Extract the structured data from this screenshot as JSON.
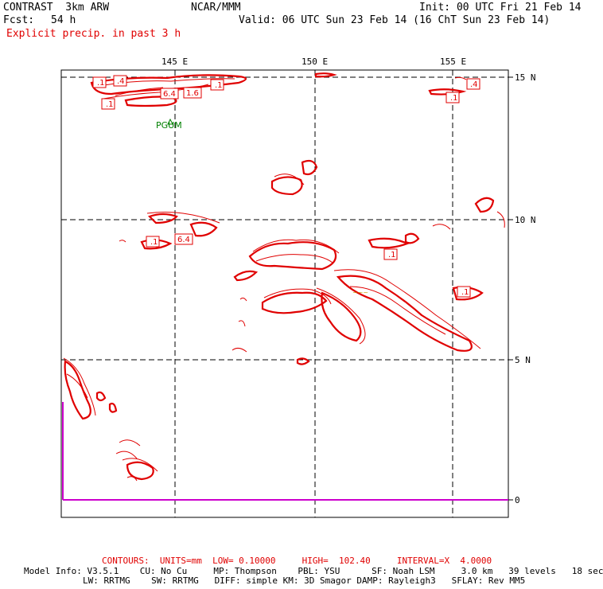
{
  "header": {
    "model": "CONTRAST  3km ARW",
    "center": "NCAR/MMM",
    "init": "Init: 00 UTC Fri 21 Feb 14",
    "fcst_label": "Fcst:",
    "fcst_value": "54 h",
    "valid": "Valid: 06 UTC Sun 23 Feb 14 (16 ChT Sun 23 Feb 14)",
    "field": "Explicit precip. in past 3 h"
  },
  "map": {
    "lon_labels": [
      "145 E",
      "150 E",
      "155 E"
    ],
    "lat_labels": [
      "15 N",
      "10 N",
      "5 N"
    ],
    "side_scale_label": "0",
    "station_label": "PGUM",
    "contour_labels": [
      ".1",
      ".4",
      "6.4",
      "1.6",
      ".1",
      ".1",
      ".4",
      ".1",
      ".1",
      "6.4",
      ".1",
      ".1"
    ],
    "colors": {
      "contour": "#e00000",
      "side_scale": "#cc00cc",
      "station": "#008000",
      "grid": "#000000"
    }
  },
  "footer": {
    "contours": "CONTOURS:  UNITS=mm  LOW= 0.10000     HIGH=  102.40     INTERVAL=X  4.0000",
    "model_info_1": "Model Info: V3.5.1    CU: No Cu     MP: Thompson    PBL: YSU      SF: Noah LSM     3.0 km   39 levels   18 sec",
    "model_info_2": "LW: RRTMG    SW: RRTMG   DIFF: simple KM: 3D Smagor DAMP: Rayleigh3   SFLAY: Rev MM5"
  }
}
